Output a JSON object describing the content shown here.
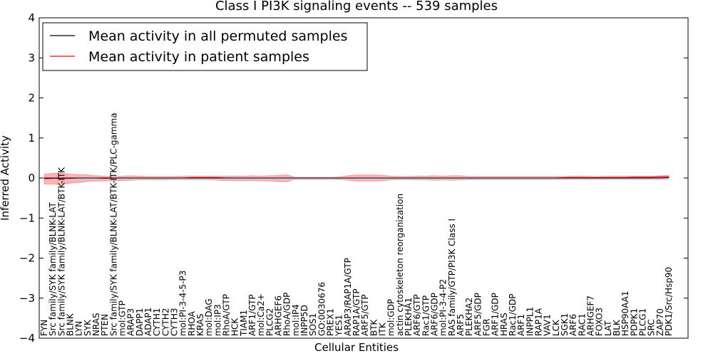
{
  "chart_data": {
    "type": "line",
    "title": "Class I PI3K signaling events -- 539 samples",
    "xlabel": "Cellular Entities",
    "ylabel": "Inferred Activity",
    "ylim": [
      -4,
      4
    ],
    "yticks": [
      -4,
      -3,
      -2,
      -1,
      0,
      1,
      2,
      3,
      4
    ],
    "legend_position": "top-left",
    "categories": [
      "FYN",
      "Src family/SYK family/BLNK-LAT",
      "Src family/SYK family/BLNK-LAT/BTK-ITK",
      "BLNK",
      "LYN",
      "SYK",
      "NRAS",
      "PTEN",
      "Src family/SYK family/BLNK-LAT/BTK-ITK/PLC-gamma",
      "mol:GTP",
      "ARAP3",
      "DAPP1",
      "ADAP1",
      "CYTH1",
      "CYTH2",
      "CYTH3",
      "mol:PI-3-4-5-P3",
      "RHOA",
      "KRAS",
      "mol:DAG",
      "mol:IP3",
      "RhoA/GTP",
      "HCK",
      "TIAM1",
      "ARF1/GTP",
      "mol:Ca2+",
      "PLCG2",
      "ARHGEF6",
      "RhoA/GDP",
      "mol:IP4",
      "INPP5D",
      "SOS1",
      "GO:0030676",
      "PREX1",
      "YES1",
      "ARAP3/RAP1A/GTP",
      "RAP1A/GTP",
      "ARF5/GTP",
      "BTK",
      "ITK",
      "mol:GDP",
      "actin cytoskeleton reorganization",
      "PLEKHA1",
      "ARF6/GTP",
      "Rac1/GTP",
      "ARF6/GDP",
      "mol:PI-3-4-P2",
      "RAS family/GTP/PI3K Class I",
      "ARF5",
      "PLEKHA2",
      "ARF5/GDP",
      "FGR",
      "ARF1/GDP",
      "HRAS",
      "Rac1/GDP",
      "ARF1",
      "INPPL1",
      "RAP1A",
      "VAV1",
      "LCK",
      "SGK1",
      "ARF6",
      "RAC1",
      "ARHGEF7",
      "FOXO3",
      "LAT",
      "BLK",
      "HSP90AA1",
      "PDPK1",
      "PLCG1",
      "SRC",
      "ZAP70",
      "PDK1/Src/Hsp90"
    ],
    "series": [
      {
        "name": "Mean activity in all permuted samples",
        "color": "#000000",
        "values": [
          0,
          0,
          0,
          0,
          0,
          0,
          0,
          0,
          0,
          0,
          0,
          0,
          0,
          0,
          0,
          0,
          0,
          0,
          0,
          0,
          0,
          0,
          0,
          0,
          0,
          0,
          0,
          0,
          0,
          0,
          0,
          0,
          0,
          0,
          0,
          0,
          0,
          0,
          0,
          0,
          0,
          0,
          0,
          0,
          0,
          0,
          0,
          0,
          0,
          0,
          0,
          0,
          0,
          0,
          0,
          0,
          0,
          0,
          0,
          0,
          0,
          0,
          0,
          0,
          0,
          0,
          0,
          0,
          0,
          0,
          0,
          0,
          0.01
        ]
      },
      {
        "name": "Mean activity in patient samples",
        "color": "#ff0000",
        "values": [
          -0.02,
          -0.01,
          -0.01,
          -0.01,
          0,
          0,
          0,
          -0.01,
          0,
          0,
          0,
          0,
          0,
          0,
          0,
          0,
          0,
          0.01,
          0.01,
          0.01,
          0.01,
          0,
          0,
          0,
          0,
          0,
          0,
          0,
          0,
          0,
          0,
          0,
          0,
          0,
          0,
          0,
          0,
          0,
          0,
          0,
          0,
          0,
          0,
          0,
          0,
          0,
          0,
          0,
          0,
          0,
          0,
          0,
          0,
          0,
          0,
          0,
          0,
          0,
          0,
          0,
          0.01,
          0.01,
          0.01,
          0.01,
          0.01,
          0.01,
          0.01,
          0.01,
          0.02,
          0.02,
          0.02,
          0.03,
          0.04
        ]
      }
    ],
    "band_upper": [
      0.1,
      0.12,
      0.13,
      0.1,
      0.09,
      0.08,
      0.06,
      0.05,
      0.04,
      0.05,
      0.06,
      0.05,
      0.04,
      0.04,
      0.04,
      0.04,
      0.05,
      0.05,
      0.05,
      0.05,
      0.05,
      0.05,
      0.05,
      0.05,
      0.06,
      0.05,
      0.06,
      0.07,
      0.08,
      0.02,
      0.02,
      0.02,
      0.02,
      0.02,
      0.03,
      0.06,
      0.08,
      0.08,
      0.08,
      0.07,
      0.05,
      0.04,
      0.04,
      0.05,
      0.05,
      0.06,
      0.05,
      0.06,
      0.06,
      0.04,
      0.04,
      0.04,
      0.04,
      0.04,
      0.04,
      0.04,
      0.04,
      0.04,
      0.04,
      0.04,
      0.04,
      0.05,
      0.05,
      0.04,
      0.04,
      0.05,
      0.05,
      0.05,
      0.05,
      0.05,
      0.05,
      0.06,
      0.06
    ],
    "band_lower": [
      -0.15,
      -0.16,
      -0.16,
      -0.13,
      -0.12,
      -0.09,
      -0.08,
      -0.08,
      -0.07,
      -0.07,
      -0.06,
      -0.05,
      -0.05,
      -0.05,
      -0.05,
      -0.04,
      -0.04,
      -0.04,
      -0.04,
      -0.04,
      -0.06,
      -0.07,
      -0.07,
      -0.07,
      -0.07,
      -0.07,
      -0.08,
      -0.09,
      -0.1,
      -0.02,
      -0.02,
      -0.02,
      -0.02,
      -0.02,
      -0.03,
      -0.06,
      -0.08,
      -0.08,
      -0.08,
      -0.07,
      -0.05,
      -0.04,
      -0.04,
      -0.05,
      -0.05,
      -0.06,
      -0.05,
      -0.06,
      -0.05,
      -0.04,
      -0.03,
      -0.03,
      -0.03,
      -0.03,
      -0.03,
      -0.03,
      -0.03,
      -0.03,
      -0.03,
      -0.03,
      -0.02,
      -0.02,
      -0.02,
      -0.02,
      -0.02,
      -0.02,
      -0.02,
      -0.02,
      -0.02,
      -0.02,
      -0.02,
      -0.02,
      -0.01
    ]
  }
}
